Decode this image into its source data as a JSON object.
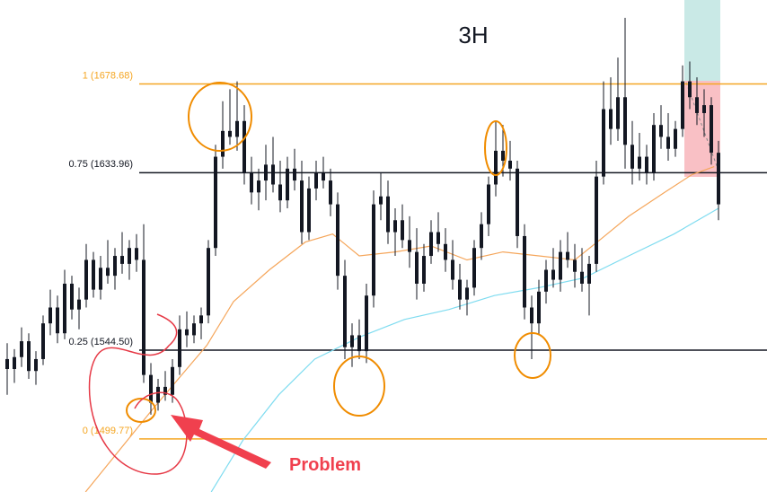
{
  "chart_data": {
    "type": "candlestick",
    "title": "3H",
    "annotation": "Problem",
    "candle_color": "#131722",
    "ylim": [
      1473,
      1721
    ],
    "fib_levels": [
      {
        "value": 1678.68,
        "label": "1 (1678.68)",
        "color": "#f5a623"
      },
      {
        "value": 1633.96,
        "label": "0.75 (1633.96)",
        "color": "#131722"
      },
      {
        "value": 1544.5,
        "label": "0.25 (1544.50)",
        "color": "#131722"
      },
      {
        "value": 1499.77,
        "label": "0 (1499.77)",
        "color": "#f5a623"
      }
    ],
    "ohlc": [
      [
        1540,
        1548,
        1522,
        1535
      ],
      [
        1535,
        1545,
        1528,
        1541
      ],
      [
        1541,
        1556,
        1536,
        1549
      ],
      [
        1549,
        1553,
        1530,
        1534
      ],
      [
        1534,
        1544,
        1527,
        1540
      ],
      [
        1540,
        1562,
        1537,
        1558
      ],
      [
        1558,
        1575,
        1552,
        1566
      ],
      [
        1566,
        1572,
        1548,
        1553
      ],
      [
        1553,
        1585,
        1550,
        1578
      ],
      [
        1578,
        1582,
        1560,
        1565
      ],
      [
        1565,
        1576,
        1555,
        1570
      ],
      [
        1570,
        1598,
        1566,
        1590
      ],
      [
        1590,
        1594,
        1571,
        1575
      ],
      [
        1575,
        1592,
        1570,
        1586
      ],
      [
        1586,
        1600,
        1578,
        1582
      ],
      [
        1582,
        1596,
        1575,
        1592
      ],
      [
        1592,
        1604,
        1583,
        1588
      ],
      [
        1588,
        1600,
        1580,
        1596
      ],
      [
        1596,
        1603,
        1584,
        1590
      ],
      [
        1590,
        1608,
        1528,
        1532
      ],
      [
        1532,
        1538,
        1512,
        1518
      ],
      [
        1518,
        1530,
        1514,
        1526
      ],
      [
        1526,
        1534,
        1519,
        1522
      ],
      [
        1522,
        1540,
        1518,
        1536
      ],
      [
        1536,
        1562,
        1532,
        1555
      ],
      [
        1555,
        1564,
        1546,
        1552
      ],
      [
        1552,
        1562,
        1548,
        1558
      ],
      [
        1558,
        1566,
        1550,
        1562
      ],
      [
        1562,
        1600,
        1558,
        1596
      ],
      [
        1596,
        1648,
        1592,
        1642
      ],
      [
        1642,
        1670,
        1636,
        1655
      ],
      [
        1655,
        1676,
        1648,
        1652
      ],
      [
        1652,
        1680,
        1645,
        1660
      ],
      [
        1660,
        1668,
        1628,
        1634
      ],
      [
        1634,
        1642,
        1618,
        1624
      ],
      [
        1624,
        1636,
        1615,
        1630
      ],
      [
        1630,
        1648,
        1620,
        1638
      ],
      [
        1638,
        1652,
        1624,
        1628
      ],
      [
        1628,
        1640,
        1614,
        1620
      ],
      [
        1620,
        1642,
        1616,
        1636
      ],
      [
        1636,
        1646,
        1625,
        1630
      ],
      [
        1630,
        1640,
        1598,
        1604
      ],
      [
        1604,
        1632,
        1600,
        1626
      ],
      [
        1626,
        1640,
        1620,
        1634
      ],
      [
        1634,
        1642,
        1626,
        1630
      ],
      [
        1630,
        1636,
        1612,
        1618
      ],
      [
        1618,
        1624,
        1575,
        1582
      ],
      [
        1582,
        1590,
        1540,
        1546
      ],
      [
        1546,
        1558,
        1536,
        1552
      ],
      [
        1552,
        1560,
        1540,
        1544
      ],
      [
        1544,
        1578,
        1538,
        1572
      ],
      [
        1572,
        1625,
        1566,
        1618
      ],
      [
        1618,
        1634,
        1610,
        1622
      ],
      [
        1622,
        1630,
        1598,
        1604
      ],
      [
        1604,
        1616,
        1592,
        1610
      ],
      [
        1610,
        1618,
        1596,
        1600
      ],
      [
        1600,
        1612,
        1586,
        1594
      ],
      [
        1594,
        1606,
        1570,
        1578
      ],
      [
        1578,
        1598,
        1574,
        1592
      ],
      [
        1592,
        1610,
        1588,
        1604
      ],
      [
        1604,
        1614,
        1594,
        1598
      ],
      [
        1598,
        1606,
        1584,
        1590
      ],
      [
        1590,
        1600,
        1575,
        1580
      ],
      [
        1580,
        1588,
        1565,
        1570
      ],
      [
        1570,
        1580,
        1562,
        1576
      ],
      [
        1576,
        1600,
        1572,
        1596
      ],
      [
        1596,
        1614,
        1590,
        1608
      ],
      [
        1608,
        1632,
        1602,
        1628
      ],
      [
        1628,
        1660,
        1622,
        1645
      ],
      [
        1645,
        1658,
        1632,
        1640
      ],
      [
        1640,
        1650,
        1630,
        1636
      ],
      [
        1636,
        1640,
        1596,
        1602
      ],
      [
        1602,
        1608,
        1560,
        1566
      ],
      [
        1566,
        1572,
        1540,
        1558
      ],
      [
        1558,
        1580,
        1552,
        1574
      ],
      [
        1574,
        1590,
        1568,
        1585
      ],
      [
        1585,
        1596,
        1576,
        1580
      ],
      [
        1580,
        1600,
        1574,
        1594
      ],
      [
        1594,
        1604,
        1586,
        1590
      ],
      [
        1590,
        1598,
        1576,
        1584
      ],
      [
        1584,
        1596,
        1574,
        1578
      ],
      [
        1578,
        1592,
        1562,
        1588
      ],
      [
        1588,
        1640,
        1584,
        1632
      ],
      [
        1632,
        1680,
        1628,
        1666
      ],
      [
        1666,
        1682,
        1648,
        1656
      ],
      [
        1656,
        1692,
        1650,
        1672
      ],
      [
        1672,
        1712,
        1636,
        1648
      ],
      [
        1648,
        1660,
        1628,
        1636
      ],
      [
        1636,
        1654,
        1630,
        1642
      ],
      [
        1642,
        1648,
        1628,
        1634
      ],
      [
        1634,
        1664,
        1630,
        1658
      ],
      [
        1658,
        1668,
        1646,
        1652
      ],
      [
        1652,
        1664,
        1640,
        1646
      ],
      [
        1646,
        1660,
        1642,
        1656
      ],
      [
        1656,
        1688,
        1652,
        1680
      ],
      [
        1680,
        1690,
        1666,
        1672
      ],
      [
        1672,
        1682,
        1658,
        1664
      ],
      [
        1664,
        1676,
        1652,
        1668
      ],
      [
        1668,
        1672,
        1638,
        1644
      ],
      [
        1644,
        1650,
        1610,
        1618
      ]
    ],
    "moving_averages": [
      {
        "color": "#f5a65b",
        "x": [
          10.9,
          20.3,
          27.8,
          31.5,
          36.5,
          41.5,
          45.3,
          49,
          54,
          59,
          64,
          69,
          74,
          79,
          82.8,
          86.5,
          91.5,
          95.3,
          98.4
        ],
        "values": [
          1473,
          1515,
          1547,
          1569,
          1585,
          1599,
          1603,
          1592,
          1594,
          1597,
          1590,
          1594,
          1592,
          1590,
          1601,
          1612,
          1624,
          1633,
          1637
        ]
      },
      {
        "color": "#7fdcf0",
        "x": [
          28.4,
          32.8,
          37.8,
          42.8,
          49,
          55.3,
          61.5,
          67.8,
          74,
          80.3,
          86.5,
          92.8,
          99
        ],
        "values": [
          1473,
          1499,
          1522,
          1540,
          1551,
          1560,
          1565,
          1572,
          1576,
          1581,
          1592,
          1603,
          1616
        ]
      }
    ]
  }
}
